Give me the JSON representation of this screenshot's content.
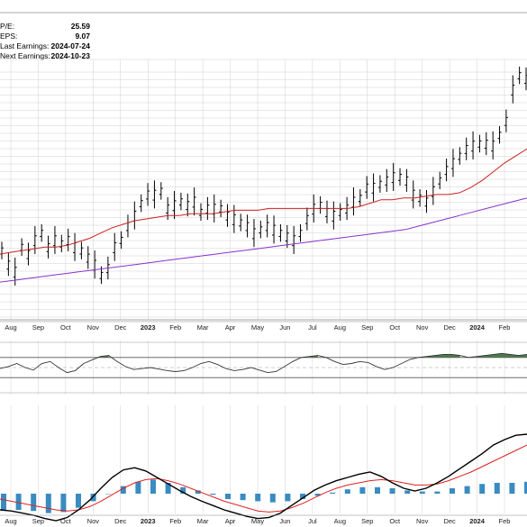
{
  "info": {
    "rows": [
      {
        "label": "P/E:",
        "value": "25.59"
      },
      {
        "label": "EPS:",
        "value": "9.07"
      },
      {
        "label": "Last Earnings:",
        "value": "2024-07-24"
      },
      {
        "label": "Next Earnings:",
        "value": "2024-10-23"
      }
    ]
  },
  "colors": {
    "price_bars": "#000000",
    "ma_short": "#cc2222",
    "ma_long": "#8833cc",
    "oscillator": "#333333",
    "oscillator_fill": "#4f7a4f",
    "macd_line": "#000000",
    "signal_line": "#dd2222",
    "histogram": "#3a8bc0",
    "grid": "#d0d0d0"
  },
  "chart_data": {
    "type": "line",
    "x_axis_labels": [
      "Aug",
      "Sep",
      "Oct",
      "Nov",
      "Dec",
      "2023",
      "Feb",
      "Mar",
      "Apr",
      "May",
      "Jun",
      "Jul",
      "Aug",
      "Sep",
      "Oct",
      "Nov",
      "Dec",
      "2024",
      "Feb"
    ],
    "panels": [
      {
        "name": "price",
        "type": "ohlc",
        "values": [
          0.38,
          0.3,
          0.26,
          0.4,
          0.36,
          0.44,
          0.48,
          0.4,
          0.44,
          0.42,
          0.44,
          0.4,
          0.38,
          0.34,
          0.3,
          0.24,
          0.28,
          0.4,
          0.44,
          0.52,
          0.58,
          0.65,
          0.7,
          0.7,
          0.72,
          0.62,
          0.64,
          0.66,
          0.64,
          0.66,
          0.6,
          0.62,
          0.62,
          0.62,
          0.58,
          0.56,
          0.54,
          0.52,
          0.48,
          0.5,
          0.52,
          0.5,
          0.48,
          0.46,
          0.44,
          0.48,
          0.56,
          0.62,
          0.64,
          0.6,
          0.58,
          0.6,
          0.62,
          0.66,
          0.68,
          0.74,
          0.74,
          0.76,
          0.78,
          0.8,
          0.8,
          0.78,
          0.7,
          0.68,
          0.66,
          0.72,
          0.78,
          0.84,
          0.88,
          0.92,
          0.96,
          0.98,
          0.99,
          0.99,
          0.98,
          1.04,
          1.12,
          1.3,
          1.38,
          1.36
        ],
        "ma_short": [
          0.36,
          0.37,
          0.38,
          0.39,
          0.4,
          0.4,
          0.41,
          0.43,
          0.45,
          0.48,
          0.51,
          0.53,
          0.55,
          0.56,
          0.57,
          0.58,
          0.58,
          0.59,
          0.59,
          0.59,
          0.6,
          0.61,
          0.61,
          0.61,
          0.62,
          0.62,
          0.62,
          0.62,
          0.62,
          0.62,
          0.62,
          0.62,
          0.63,
          0.65,
          0.67,
          0.67,
          0.68,
          0.68,
          0.69,
          0.7,
          0.7,
          0.71,
          0.74,
          0.78,
          0.83,
          0.88,
          0.92,
          0.96
        ],
        "ma_long": [
          0.2,
          0.21,
          0.22,
          0.23,
          0.24,
          0.25,
          0.26,
          0.27,
          0.28,
          0.29,
          0.3,
          0.31,
          0.32,
          0.33,
          0.34,
          0.35,
          0.36,
          0.37,
          0.38,
          0.39,
          0.4,
          0.41,
          0.42,
          0.43,
          0.44,
          0.45,
          0.46,
          0.47,
          0.48,
          0.49,
          0.5,
          0.52,
          0.54,
          0.56,
          0.58,
          0.6,
          0.62,
          0.64,
          0.66,
          0.68
        ]
      },
      {
        "name": "oscillator",
        "type": "line",
        "ylim": [
          0,
          100
        ],
        "levels": [
          70,
          30
        ],
        "values": [
          48,
          52,
          58,
          50,
          45,
          58,
          62,
          50,
          40,
          44,
          58,
          65,
          72,
          74,
          62,
          52,
          46,
          48,
          50,
          47,
          44,
          42,
          44,
          50,
          58,
          62,
          56,
          48,
          44,
          46,
          50,
          45,
          40,
          42,
          52,
          62,
          70,
          72,
          74,
          70,
          62,
          56,
          58,
          62,
          60,
          52,
          46,
          50,
          58,
          66,
          70,
          72,
          74,
          76,
          76,
          74,
          70,
          72,
          74,
          76,
          78,
          76,
          74,
          76
        ]
      },
      {
        "name": "macd",
        "type": "line",
        "macd": [
          -0.3,
          -0.32,
          -0.36,
          -0.4,
          -0.46,
          -0.5,
          -0.44,
          -0.3,
          -0.12,
          0.1,
          0.3,
          0.44,
          0.48,
          0.42,
          0.3,
          0.18,
          0.06,
          -0.05,
          -0.14,
          -0.22,
          -0.3,
          -0.36,
          -0.42,
          -0.46,
          -0.44,
          -0.36,
          -0.22,
          -0.08,
          0.06,
          0.16,
          0.24,
          0.3,
          0.36,
          0.4,
          0.32,
          0.2,
          0.1,
          0.05,
          0.1,
          0.2,
          0.32,
          0.46,
          0.6,
          0.74,
          0.9,
          1.0,
          1.08,
          1.1
        ],
        "signal": [
          -0.1,
          -0.14,
          -0.18,
          -0.22,
          -0.26,
          -0.3,
          -0.32,
          -0.3,
          -0.24,
          -0.14,
          -0.02,
          0.1,
          0.2,
          0.26,
          0.28,
          0.24,
          0.18,
          0.1,
          0.02,
          -0.06,
          -0.14,
          -0.2,
          -0.26,
          -0.32,
          -0.34,
          -0.32,
          -0.26,
          -0.18,
          -0.08,
          0.02,
          0.1,
          0.16,
          0.2,
          0.24,
          0.26,
          0.24,
          0.2,
          0.16,
          0.16,
          0.18,
          0.24,
          0.32,
          0.4,
          0.5,
          0.6,
          0.7,
          0.8,
          0.9
        ],
        "histogram": [
          -0.3,
          -0.3,
          -0.32,
          -0.36,
          -0.34,
          -0.26,
          -0.14,
          0.0,
          0.14,
          0.22,
          0.26,
          0.2,
          0.12,
          0.06,
          -0.02,
          -0.1,
          -0.12,
          -0.14,
          -0.16,
          -0.14,
          -0.1,
          -0.04,
          0.02,
          0.08,
          0.12,
          0.12,
          0.1,
          0.06,
          0.04,
          0.04,
          0.1,
          0.14,
          0.18,
          0.2,
          0.2,
          0.22
        ]
      }
    ]
  }
}
